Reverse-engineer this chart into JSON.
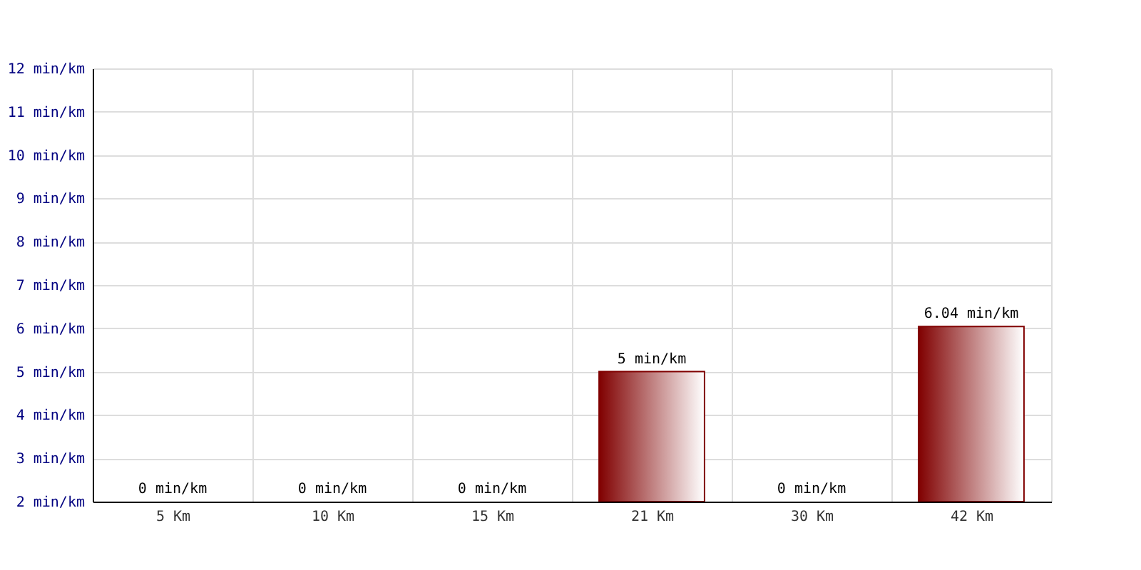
{
  "chart_data": {
    "type": "bar",
    "categories": [
      "5 Km",
      "10 Km",
      "15 Km",
      "21 Km",
      "30 Km",
      "42 Km"
    ],
    "values": [
      null,
      null,
      null,
      5,
      null,
      6.04
    ],
    "value_labels": [
      "0 min/km",
      "0 min/km",
      "0 min/km",
      "5 min/km",
      "0 min/km",
      "6.04 min/km"
    ],
    "color": "#800000",
    "ylim": [
      2,
      12
    ],
    "yticks": [
      {
        "value": 2,
        "label": "2 min/km"
      },
      {
        "value": 3,
        "label": "3 min/km"
      },
      {
        "value": 4,
        "label": "4 min/km"
      },
      {
        "value": 5,
        "label": "5 min/km"
      },
      {
        "value": 6,
        "label": "6 min/km"
      },
      {
        "value": 7,
        "label": "7 min/km"
      },
      {
        "value": 8,
        "label": "8 min/km"
      },
      {
        "value": 9,
        "label": "9 min/km"
      },
      {
        "value": 10,
        "label": "10 min/km"
      },
      {
        "value": 11,
        "label": "11 min/km"
      },
      {
        "value": 12,
        "label": "12 min/km"
      }
    ],
    "grid": true
  }
}
